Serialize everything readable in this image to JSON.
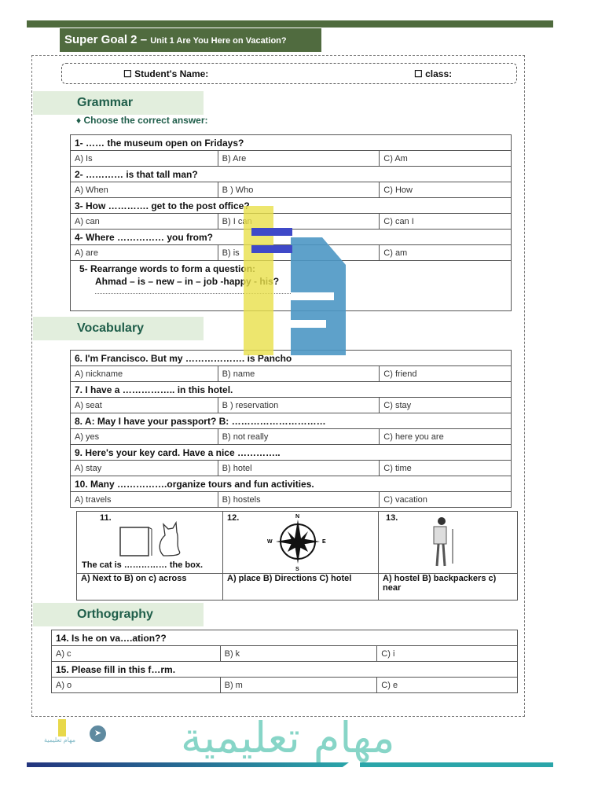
{
  "header": {
    "title_main": "Super Goal 2 – ",
    "title_sub": "Unit 1 Are You Here on Vacation?",
    "student_name_label": "☐ Student's Name:",
    "class_label": "☐ class:"
  },
  "sections": {
    "grammar": "Grammar",
    "vocabulary": "Vocabulary",
    "orthography": "Orthography"
  },
  "instruction": "♦ Choose the correct answer:",
  "grammar": [
    {
      "q": "1-   …… the museum open on Fridays?",
      "opts": [
        "A)   Is",
        "B)    Are",
        "C)    Am"
      ]
    },
    {
      "q": "2-   ………… is that tall man?",
      "opts": [
        "A)   When",
        "B ) Who",
        "C) How"
      ]
    },
    {
      "q": "3-   How …………. get to the post office?",
      "opts": [
        "A)   can",
        "B)    I can",
        "C)    can I"
      ]
    },
    {
      "q": "4-   Where …………… you from?",
      "opts": [
        "A)   are",
        "B)    is",
        "C)    am"
      ]
    }
  ],
  "q5": {
    "line1": "5-  Rearrange words to form a question:",
    "line2": "Ahmad – is – new – in – job -happy -  his?"
  },
  "vocabulary": [
    {
      "q": "6. I'm Francisco. But my ………………. is Pancho",
      "opts": [
        "A)   nickname",
        "B)   name",
        "C)   friend"
      ]
    },
    {
      "q": "7. I have a …………….. in this hotel.",
      "opts": [
        "A)   seat",
        "B ) reservation",
        "C) stay"
      ]
    },
    {
      "q": "8.    A: May  I have your passport? B: …………………………",
      "opts": [
        "A)   yes",
        "B)   not really",
        "C)  here you are"
      ]
    },
    {
      "q": "9.  Here's your key card. Have a nice …………..",
      "opts": [
        "A)  stay",
        "B)  hotel",
        "C)  time"
      ]
    },
    {
      "q": "10. Many …………….organize tours and fun activities.",
      "opts": [
        "A)   travels",
        "B)   hostels",
        "C)   vacation"
      ]
    }
  ],
  "pictures": [
    {
      "num": "11.",
      "caption": "The cat is …………… the box.",
      "answers": "A)   Next to    B) on    c) across"
    },
    {
      "num": "12.",
      "compass": {
        "n": "N",
        "s": "S",
        "e": "E",
        "w": "W"
      },
      "answers": "A)   place  B) Directions   C) hotel"
    },
    {
      "num": "13.",
      "answers": "A)   hostel  B)  backpackers c) near"
    }
  ],
  "orthography": [
    {
      "q": "14. Is he on va….ation??",
      "opts": [
        "A)  c",
        "B)   k",
        "C)   i"
      ]
    },
    {
      "q": "15. Please fill in this f…rm.",
      "opts": [
        "A)  o",
        "B)   m",
        "C)   e"
      ]
    }
  ],
  "watermark": {
    "arabic": "مهام تعليمية",
    "logo_text": "مهام تعليمية"
  },
  "colors": {
    "header_green": "#506b3f",
    "section_bg": "#e2eedd",
    "section_text": "#1f5e4a",
    "footer_blue": "#23347e",
    "footer_teal": "#2aa5a9"
  }
}
